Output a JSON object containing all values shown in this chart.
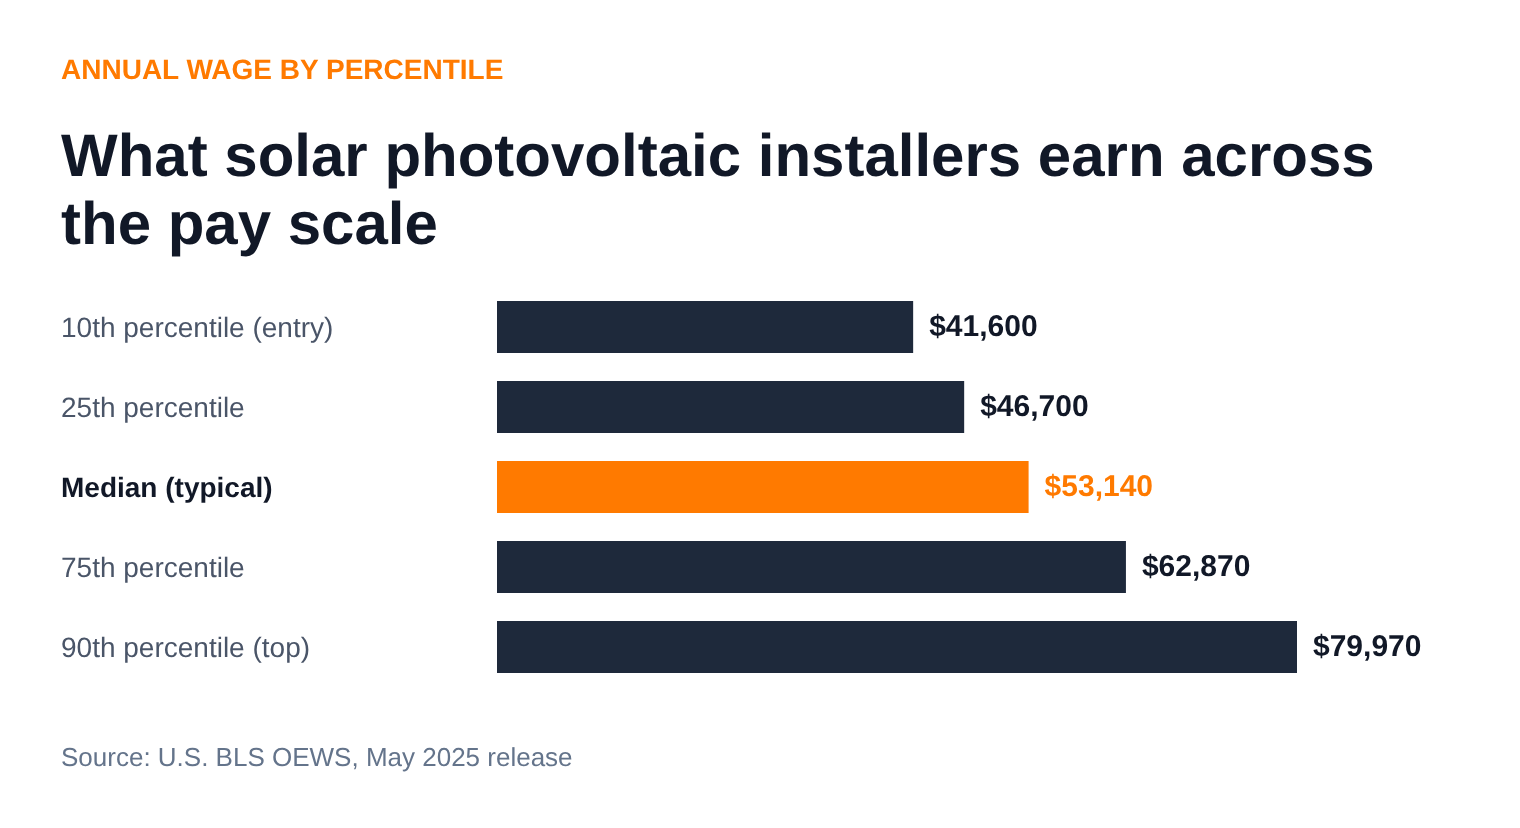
{
  "chart_data": {
    "type": "bar",
    "orientation": "horizontal",
    "subtitle": "ANNUAL WAGE BY PERCENTILE",
    "title": "What solar photovoltaic installers earn across the pay scale",
    "categories": [
      "10th percentile (entry)",
      "25th percentile",
      "Median (typical)",
      "75th percentile",
      "90th percentile (top)"
    ],
    "values": [
      41600,
      46700,
      53140,
      62870,
      79970
    ],
    "colors": [
      "#1e293b",
      "#1e293b",
      "#ff7a00",
      "#1e293b",
      "#1e293b"
    ],
    "value_labels": [
      "$41,600",
      "$46,700",
      "$53,140",
      "$62,870",
      "$79,970"
    ],
    "grid": false,
    "annotations": [
      "Source: U.S. BLS OEWS, May 2025 release"
    ]
  }
}
